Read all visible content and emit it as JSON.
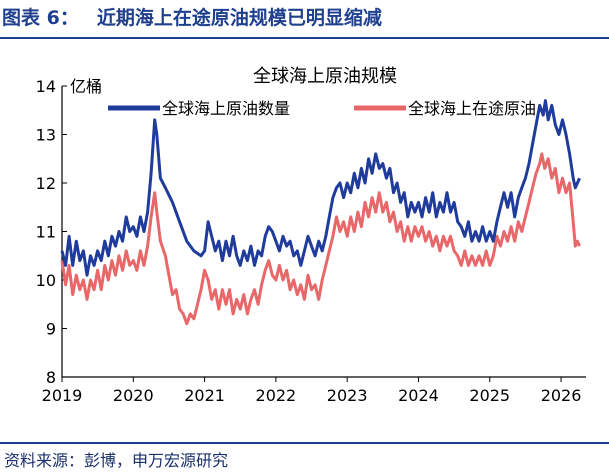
{
  "figure": {
    "label": "图表 6：",
    "title": "近期海上在途原油规模已明显缩减",
    "source": "资料来源：彭博，申万宏源研究"
  },
  "colors": {
    "series1": "#1f3b9c",
    "series2": "#e8686a",
    "title": "#1f3f8f",
    "axis": "#000000"
  },
  "chart_data": {
    "type": "line",
    "title": "全球海上原油规模",
    "ylabel": "亿桶",
    "xlabel": "",
    "xlim": [
      2019.0,
      2026.35
    ],
    "ylim": [
      8,
      14
    ],
    "xticks": [
      2019,
      2020,
      2021,
      2022,
      2023,
      2024,
      2025,
      2026
    ],
    "yticks": [
      8,
      9,
      10,
      11,
      12,
      13,
      14
    ],
    "grid": false,
    "legend": "top",
    "series": [
      {
        "name": "全球海上原油数量",
        "color": "#1f3b9c",
        "points": [
          [
            2019.0,
            10.6
          ],
          [
            2019.05,
            10.3
          ],
          [
            2019.1,
            10.9
          ],
          [
            2019.15,
            10.3
          ],
          [
            2019.2,
            10.8
          ],
          [
            2019.25,
            10.4
          ],
          [
            2019.3,
            10.6
          ],
          [
            2019.35,
            10.1
          ],
          [
            2019.4,
            10.5
          ],
          [
            2019.45,
            10.3
          ],
          [
            2019.5,
            10.6
          ],
          [
            2019.55,
            10.4
          ],
          [
            2019.6,
            10.8
          ],
          [
            2019.65,
            10.5
          ],
          [
            2019.7,
            10.9
          ],
          [
            2019.75,
            10.7
          ],
          [
            2019.8,
            11.0
          ],
          [
            2019.85,
            10.8
          ],
          [
            2019.9,
            11.3
          ],
          [
            2019.95,
            11.0
          ],
          [
            2020.0,
            11.1
          ],
          [
            2020.05,
            10.9
          ],
          [
            2020.1,
            11.3
          ],
          [
            2020.15,
            11.0
          ],
          [
            2020.2,
            11.4
          ],
          [
            2020.25,
            12.2
          ],
          [
            2020.3,
            13.3
          ],
          [
            2020.33,
            13.0
          ],
          [
            2020.38,
            12.1
          ],
          [
            2020.45,
            11.9
          ],
          [
            2020.55,
            11.6
          ],
          [
            2020.65,
            11.2
          ],
          [
            2020.75,
            10.8
          ],
          [
            2020.85,
            10.6
          ],
          [
            2020.95,
            10.5
          ],
          [
            2021.0,
            10.6
          ],
          [
            2021.05,
            11.2
          ],
          [
            2021.1,
            10.9
          ],
          [
            2021.15,
            10.6
          ],
          [
            2021.2,
            10.8
          ],
          [
            2021.25,
            10.4
          ],
          [
            2021.3,
            10.8
          ],
          [
            2021.35,
            10.5
          ],
          [
            2021.4,
            10.9
          ],
          [
            2021.45,
            10.5
          ],
          [
            2021.5,
            10.3
          ],
          [
            2021.55,
            10.6
          ],
          [
            2021.6,
            10.4
          ],
          [
            2021.65,
            10.7
          ],
          [
            2021.7,
            10.3
          ],
          [
            2021.75,
            10.6
          ],
          [
            2021.8,
            10.5
          ],
          [
            2021.85,
            10.9
          ],
          [
            2021.9,
            11.1
          ],
          [
            2021.95,
            11.0
          ],
          [
            2022.0,
            10.8
          ],
          [
            2022.05,
            10.6
          ],
          [
            2022.1,
            10.9
          ],
          [
            2022.15,
            10.7
          ],
          [
            2022.2,
            10.8
          ],
          [
            2022.25,
            10.5
          ],
          [
            2022.3,
            10.6
          ],
          [
            2022.35,
            10.3
          ],
          [
            2022.4,
            10.6
          ],
          [
            2022.45,
            10.9
          ],
          [
            2022.5,
            10.7
          ],
          [
            2022.55,
            10.5
          ],
          [
            2022.6,
            10.8
          ],
          [
            2022.65,
            10.6
          ],
          [
            2022.7,
            10.9
          ],
          [
            2022.75,
            11.3
          ],
          [
            2022.8,
            11.7
          ],
          [
            2022.85,
            11.9
          ],
          [
            2022.9,
            12.0
          ],
          [
            2022.95,
            11.7
          ],
          [
            2023.0,
            12.0
          ],
          [
            2023.05,
            11.8
          ],
          [
            2023.1,
            12.2
          ],
          [
            2023.15,
            11.9
          ],
          [
            2023.2,
            12.3
          ],
          [
            2023.25,
            12.0
          ],
          [
            2023.3,
            12.5
          ],
          [
            2023.35,
            12.2
          ],
          [
            2023.4,
            12.6
          ],
          [
            2023.45,
            12.3
          ],
          [
            2023.5,
            12.4
          ],
          [
            2023.55,
            12.1
          ],
          [
            2023.6,
            12.3
          ],
          [
            2023.65,
            11.8
          ],
          [
            2023.7,
            12.0
          ],
          [
            2023.75,
            11.6
          ],
          [
            2023.8,
            11.8
          ],
          [
            2023.85,
            11.3
          ],
          [
            2023.9,
            11.6
          ],
          [
            2023.95,
            11.4
          ],
          [
            2024.0,
            11.6
          ],
          [
            2024.05,
            11.3
          ],
          [
            2024.1,
            11.7
          ],
          [
            2024.15,
            11.4
          ],
          [
            2024.2,
            11.8
          ],
          [
            2024.25,
            11.3
          ],
          [
            2024.3,
            11.6
          ],
          [
            2024.35,
            11.4
          ],
          [
            2024.4,
            11.8
          ],
          [
            2024.45,
            11.4
          ],
          [
            2024.5,
            11.6
          ],
          [
            2024.55,
            11.2
          ],
          [
            2024.6,
            11.1
          ],
          [
            2024.65,
            10.9
          ],
          [
            2024.7,
            11.2
          ],
          [
            2024.75,
            10.8
          ],
          [
            2024.8,
            11.0
          ],
          [
            2024.85,
            10.8
          ],
          [
            2024.9,
            11.1
          ],
          [
            2024.95,
            10.8
          ],
          [
            2025.0,
            11.0
          ],
          [
            2025.05,
            10.8
          ],
          [
            2025.1,
            11.2
          ],
          [
            2025.15,
            11.5
          ],
          [
            2025.2,
            11.8
          ],
          [
            2025.25,
            11.5
          ],
          [
            2025.3,
            11.8
          ],
          [
            2025.35,
            11.3
          ],
          [
            2025.4,
            11.7
          ],
          [
            2025.45,
            11.9
          ],
          [
            2025.5,
            12.1
          ],
          [
            2025.55,
            12.4
          ],
          [
            2025.6,
            12.8
          ],
          [
            2025.65,
            13.2
          ],
          [
            2025.7,
            13.6
          ],
          [
            2025.75,
            13.4
          ],
          [
            2025.78,
            13.7
          ],
          [
            2025.82,
            13.3
          ],
          [
            2025.87,
            13.6
          ],
          [
            2025.92,
            13.2
          ],
          [
            2025.97,
            13.0
          ],
          [
            2026.02,
            13.3
          ],
          [
            2026.07,
            13.0
          ],
          [
            2026.12,
            12.6
          ],
          [
            2026.17,
            12.1
          ],
          [
            2026.2,
            11.9
          ],
          [
            2026.23,
            12.0
          ],
          [
            2026.26,
            12.1
          ]
        ]
      },
      {
        "name": "全球海上在途原油",
        "color": "#e8686a",
        "points": [
          [
            2019.0,
            10.4
          ],
          [
            2019.05,
            9.9
          ],
          [
            2019.1,
            10.3
          ],
          [
            2019.15,
            9.7
          ],
          [
            2019.2,
            10.1
          ],
          [
            2019.25,
            9.8
          ],
          [
            2019.3,
            10.0
          ],
          [
            2019.35,
            9.6
          ],
          [
            2019.4,
            10.0
          ],
          [
            2019.45,
            9.8
          ],
          [
            2019.5,
            10.2
          ],
          [
            2019.55,
            9.8
          ],
          [
            2019.6,
            10.3
          ],
          [
            2019.65,
            10.0
          ],
          [
            2019.7,
            10.4
          ],
          [
            2019.75,
            10.1
          ],
          [
            2019.8,
            10.5
          ],
          [
            2019.85,
            10.2
          ],
          [
            2019.9,
            10.6
          ],
          [
            2019.95,
            10.3
          ],
          [
            2020.0,
            10.4
          ],
          [
            2020.05,
            10.2
          ],
          [
            2020.1,
            10.6
          ],
          [
            2020.15,
            10.3
          ],
          [
            2020.2,
            10.7
          ],
          [
            2020.25,
            11.3
          ],
          [
            2020.3,
            11.8
          ],
          [
            2020.33,
            11.4
          ],
          [
            2020.38,
            10.8
          ],
          [
            2020.45,
            10.5
          ],
          [
            2020.5,
            10.1
          ],
          [
            2020.55,
            9.7
          ],
          [
            2020.6,
            9.8
          ],
          [
            2020.65,
            9.4
          ],
          [
            2020.7,
            9.3
          ],
          [
            2020.75,
            9.1
          ],
          [
            2020.8,
            9.3
          ],
          [
            2020.85,
            9.2
          ],
          [
            2020.9,
            9.5
          ],
          [
            2020.95,
            9.8
          ],
          [
            2021.0,
            10.2
          ],
          [
            2021.05,
            10.0
          ],
          [
            2021.1,
            9.6
          ],
          [
            2021.15,
            9.8
          ],
          [
            2021.2,
            9.4
          ],
          [
            2021.25,
            9.8
          ],
          [
            2021.3,
            9.5
          ],
          [
            2021.35,
            9.8
          ],
          [
            2021.4,
            9.3
          ],
          [
            2021.45,
            9.6
          ],
          [
            2021.5,
            9.4
          ],
          [
            2021.55,
            9.7
          ],
          [
            2021.6,
            9.3
          ],
          [
            2021.65,
            9.6
          ],
          [
            2021.7,
            9.8
          ],
          [
            2021.75,
            9.5
          ],
          [
            2021.8,
            9.9
          ],
          [
            2021.85,
            10.2
          ],
          [
            2021.9,
            10.4
          ],
          [
            2021.95,
            10.1
          ],
          [
            2022.0,
            10.0
          ],
          [
            2022.05,
            10.3
          ],
          [
            2022.1,
            10.0
          ],
          [
            2022.15,
            10.2
          ],
          [
            2022.2,
            9.8
          ],
          [
            2022.25,
            10.0
          ],
          [
            2022.3,
            9.7
          ],
          [
            2022.35,
            9.9
          ],
          [
            2022.4,
            9.6
          ],
          [
            2022.45,
            10.1
          ],
          [
            2022.5,
            9.8
          ],
          [
            2022.55,
            9.9
          ],
          [
            2022.6,
            9.6
          ],
          [
            2022.65,
            10.0
          ],
          [
            2022.7,
            10.3
          ],
          [
            2022.75,
            10.6
          ],
          [
            2022.8,
            10.9
          ],
          [
            2022.85,
            11.3
          ],
          [
            2022.9,
            11.0
          ],
          [
            2022.95,
            11.2
          ],
          [
            2023.0,
            10.9
          ],
          [
            2023.05,
            11.3
          ],
          [
            2023.1,
            11.0
          ],
          [
            2023.15,
            11.4
          ],
          [
            2023.2,
            11.1
          ],
          [
            2023.25,
            11.6
          ],
          [
            2023.3,
            11.3
          ],
          [
            2023.35,
            11.7
          ],
          [
            2023.4,
            11.4
          ],
          [
            2023.45,
            11.8
          ],
          [
            2023.5,
            11.4
          ],
          [
            2023.55,
            11.6
          ],
          [
            2023.6,
            11.2
          ],
          [
            2023.65,
            11.4
          ],
          [
            2023.7,
            11.0
          ],
          [
            2023.75,
            11.2
          ],
          [
            2023.8,
            10.8
          ],
          [
            2023.85,
            11.1
          ],
          [
            2023.9,
            10.8
          ],
          [
            2023.95,
            11.1
          ],
          [
            2024.0,
            10.9
          ],
          [
            2024.05,
            11.1
          ],
          [
            2024.1,
            10.8
          ],
          [
            2024.15,
            11.0
          ],
          [
            2024.2,
            10.7
          ],
          [
            2024.25,
            10.9
          ],
          [
            2024.3,
            10.6
          ],
          [
            2024.35,
            10.9
          ],
          [
            2024.4,
            10.7
          ],
          [
            2024.45,
            10.9
          ],
          [
            2024.5,
            10.6
          ],
          [
            2024.55,
            10.5
          ],
          [
            2024.6,
            10.3
          ],
          [
            2024.65,
            10.6
          ],
          [
            2024.7,
            10.3
          ],
          [
            2024.75,
            10.5
          ],
          [
            2024.8,
            10.3
          ],
          [
            2024.85,
            10.5
          ],
          [
            2024.9,
            10.3
          ],
          [
            2024.95,
            10.6
          ],
          [
            2025.0,
            10.3
          ],
          [
            2025.05,
            10.5
          ],
          [
            2025.1,
            10.9
          ],
          [
            2025.15,
            10.7
          ],
          [
            2025.2,
            11.0
          ],
          [
            2025.25,
            10.8
          ],
          [
            2025.3,
            11.1
          ],
          [
            2025.35,
            10.8
          ],
          [
            2025.4,
            11.2
          ],
          [
            2025.45,
            11.0
          ],
          [
            2025.5,
            11.3
          ],
          [
            2025.55,
            11.6
          ],
          [
            2025.6,
            11.9
          ],
          [
            2025.65,
            12.2
          ],
          [
            2025.7,
            12.4
          ],
          [
            2025.73,
            12.6
          ],
          [
            2025.77,
            12.3
          ],
          [
            2025.82,
            12.5
          ],
          [
            2025.87,
            12.1
          ],
          [
            2025.92,
            12.3
          ],
          [
            2025.97,
            11.8
          ],
          [
            2026.02,
            12.1
          ],
          [
            2026.07,
            11.8
          ],
          [
            2026.12,
            12.0
          ],
          [
            2026.17,
            11.2
          ],
          [
            2026.2,
            10.7
          ],
          [
            2026.23,
            10.8
          ],
          [
            2026.26,
            10.7
          ]
        ]
      }
    ]
  }
}
